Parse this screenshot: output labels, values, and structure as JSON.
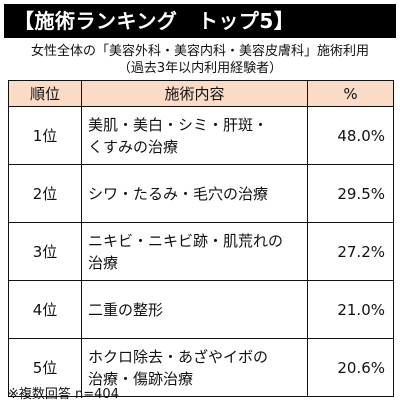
{
  "title": "【施術ランキング　トップ5】",
  "subtitle": "女性全体の「美容外科・美容内科・美容皮膚科」施術利用",
  "subtitle_note": "（過去3年以内利用経験者）",
  "table": {
    "headers": [
      "順位",
      "施術内容",
      "%"
    ],
    "rows": [
      {
        "rank": "1位",
        "item_lines": [
          "美肌・美白・シミ・肝斑・",
          "くすみの治療"
        ],
        "percent": "48.0%"
      },
      {
        "rank": "2位",
        "item_lines": [
          "シワ・たるみ・毛穴の治療"
        ],
        "percent": "29.5%"
      },
      {
        "rank": "3位",
        "item_lines": [
          "ニキビ・ニキビ跡・肌荒れの",
          "治療"
        ],
        "percent": "27.2%"
      },
      {
        "rank": "4位",
        "item_lines": [
          "二重の整形"
        ],
        "percent": "21.0%"
      },
      {
        "rank": "5位",
        "item_lines": [
          "ホクロ除去・あざやイボの",
          "治療・傷跡治療"
        ],
        "percent": "20.6%"
      }
    ]
  },
  "footnote": "※複数回答 n=404",
  "colors": {
    "title_background": "#000000",
    "header_background": "#fadbc8"
  }
}
